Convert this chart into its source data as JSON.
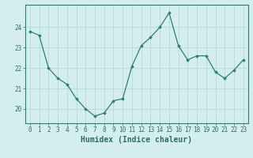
{
  "x": [
    0,
    1,
    2,
    3,
    4,
    5,
    6,
    7,
    8,
    9,
    10,
    11,
    12,
    13,
    14,
    15,
    16,
    17,
    18,
    19,
    20,
    21,
    22,
    23
  ],
  "y": [
    23.8,
    23.6,
    22.0,
    21.5,
    21.2,
    20.5,
    20.0,
    19.65,
    19.8,
    20.4,
    20.5,
    22.1,
    23.1,
    23.5,
    24.0,
    24.7,
    23.1,
    22.4,
    22.6,
    22.6,
    21.8,
    21.5,
    21.9,
    22.4
  ],
  "line_color": "#2e7d6e",
  "marker": "D",
  "marker_size": 1.8,
  "bg_color": "#d4eeee",
  "grid_color": "#b8d8d8",
  "tick_color": "#2e6e60",
  "xlabel": "Humidex (Indice chaleur)",
  "xlabel_fontsize": 7,
  "ylim": [
    19.3,
    25.1
  ],
  "yticks": [
    20,
    21,
    22,
    23,
    24
  ],
  "xticks": [
    0,
    1,
    2,
    3,
    4,
    5,
    6,
    7,
    8,
    9,
    10,
    11,
    12,
    13,
    14,
    15,
    16,
    17,
    18,
    19,
    20,
    21,
    22,
    23
  ],
  "tick_fontsize": 5.5,
  "spine_color": "#2e7d6e"
}
